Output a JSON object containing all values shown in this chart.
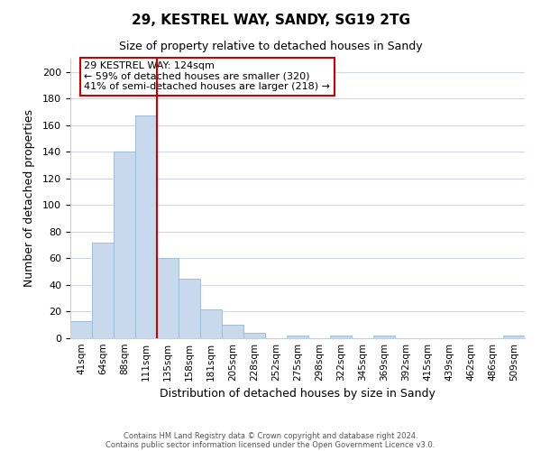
{
  "title": "29, KESTREL WAY, SANDY, SG19 2TG",
  "subtitle": "Size of property relative to detached houses in Sandy",
  "xlabel": "Distribution of detached houses by size in Sandy",
  "ylabel": "Number of detached properties",
  "bar_color": "#c8d9ed",
  "bar_edge_color": "#a0bdd8",
  "categories": [
    "41sqm",
    "64sqm",
    "88sqm",
    "111sqm",
    "135sqm",
    "158sqm",
    "181sqm",
    "205sqm",
    "228sqm",
    "252sqm",
    "275sqm",
    "298sqm",
    "322sqm",
    "345sqm",
    "369sqm",
    "392sqm",
    "415sqm",
    "439sqm",
    "462sqm",
    "486sqm",
    "509sqm"
  ],
  "values": [
    13,
    72,
    140,
    167,
    60,
    45,
    22,
    10,
    4,
    0,
    2,
    0,
    2,
    0,
    2,
    0,
    0,
    0,
    0,
    0,
    2
  ],
  "vline_x_index": 3.5,
  "vline_color": "#cc0000",
  "annotation_text": "29 KESTREL WAY: 124sqm\n← 59% of detached houses are smaller (320)\n41% of semi-detached houses are larger (218) →",
  "annotation_box_edgecolor": "#cc0000",
  "annotation_box_facecolor": "#ffffff",
  "ylim": [
    0,
    210
  ],
  "yticks": [
    0,
    20,
    40,
    60,
    80,
    100,
    120,
    140,
    160,
    180,
    200
  ],
  "footer_line1": "Contains HM Land Registry data © Crown copyright and database right 2024.",
  "footer_line2": "Contains public sector information licensed under the Open Government Licence v3.0.",
  "background_color": "#ffffff",
  "grid_color": "#d0d8e8",
  "fig_width": 6.0,
  "fig_height": 5.0,
  "fig_dpi": 100
}
